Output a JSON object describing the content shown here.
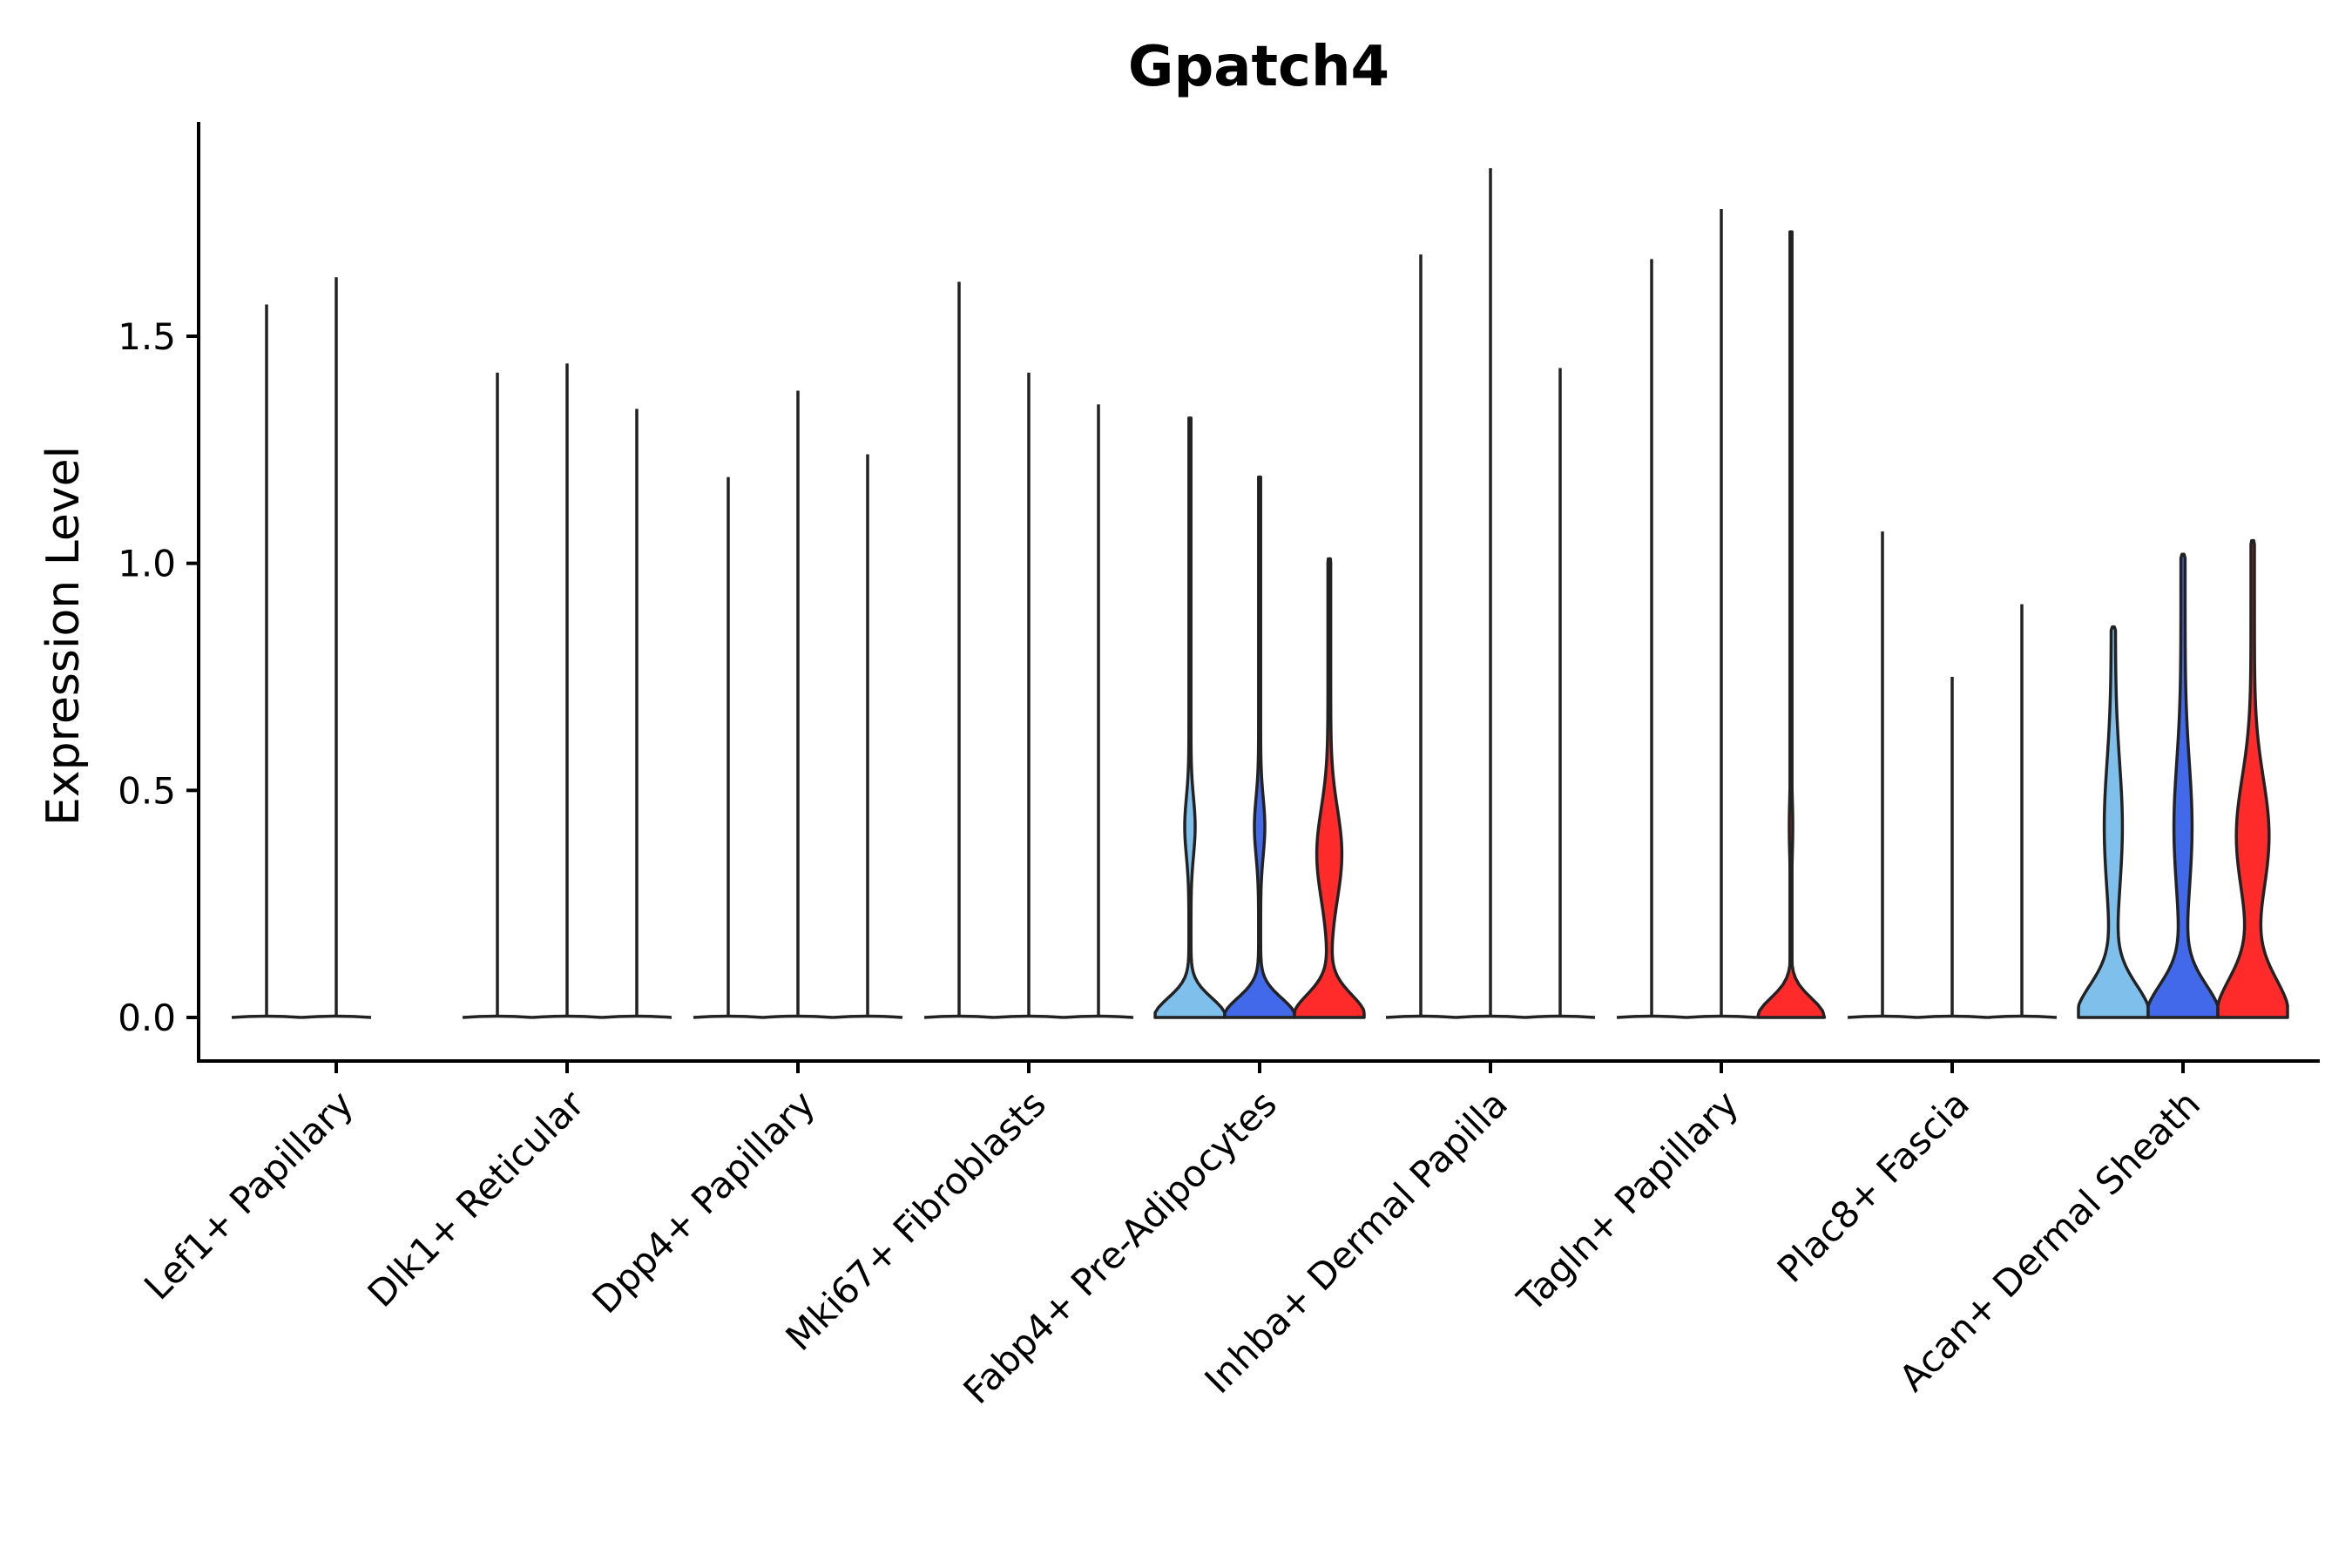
{
  "chart_data": {
    "type": "violin",
    "title": "Gpatch4",
    "xlabel": "",
    "ylabel": "Expression Level",
    "ylim": [
      -0.095,
      1.97
    ],
    "yticks": [
      "0.0",
      "0.5",
      "1.0",
      "1.5"
    ],
    "grid": false,
    "legend": "none",
    "series_colors": [
      "#7FBFEC",
      "#4169E9",
      "#FF2A2A"
    ],
    "categories": [
      "Lef1+ Papillary",
      "Dlk1+ Reticular",
      "Dpp4+ Papillary",
      "Mki67+ Fibroblasts",
      "Fabp4+ Pre-Adipocytes",
      "Inhba+ Dermal Papilla",
      "Tagln+ Papillary",
      "Plac8+ Fascia",
      "Acan+ Dermal Sheath"
    ],
    "violins": [
      [
        {
          "max": 1.57,
          "shape": "none"
        },
        {
          "max": 1.63,
          "shape": "none"
        },
        null
      ],
      [
        {
          "max": 1.42,
          "shape": "none"
        },
        {
          "max": 1.44,
          "shape": "none"
        },
        {
          "max": 1.34,
          "shape": "none"
        }
      ],
      [
        {
          "max": 1.19,
          "shape": "none"
        },
        {
          "max": 1.38,
          "shape": "none"
        },
        {
          "max": 1.24,
          "shape": "none"
        }
      ],
      [
        {
          "max": 1.62,
          "shape": "none"
        },
        {
          "max": 1.42,
          "shape": "none"
        },
        {
          "max": 1.35,
          "shape": "none"
        }
      ],
      [
        {
          "max": 1.32,
          "shape": "medium"
        },
        {
          "max": 1.19,
          "shape": "medium"
        },
        {
          "max": 1.01,
          "shape": "wide"
        }
      ],
      [
        {
          "max": 1.68,
          "shape": "none"
        },
        {
          "max": 1.87,
          "shape": "none"
        },
        {
          "max": 1.43,
          "shape": "none"
        }
      ],
      [
        {
          "max": 1.67,
          "shape": "none"
        },
        {
          "max": 1.78,
          "shape": "none"
        },
        {
          "max": 1.73,
          "shape": "small"
        }
      ],
      [
        {
          "max": 1.07,
          "shape": "none"
        },
        {
          "max": 0.75,
          "shape": "none"
        },
        {
          "max": 0.91,
          "shape": "none"
        }
      ],
      [
        {
          "max": 0.86,
          "shape": "full"
        },
        {
          "max": 1.02,
          "shape": "full"
        },
        {
          "max": 1.05,
          "shape": "fullwide"
        }
      ]
    ]
  }
}
